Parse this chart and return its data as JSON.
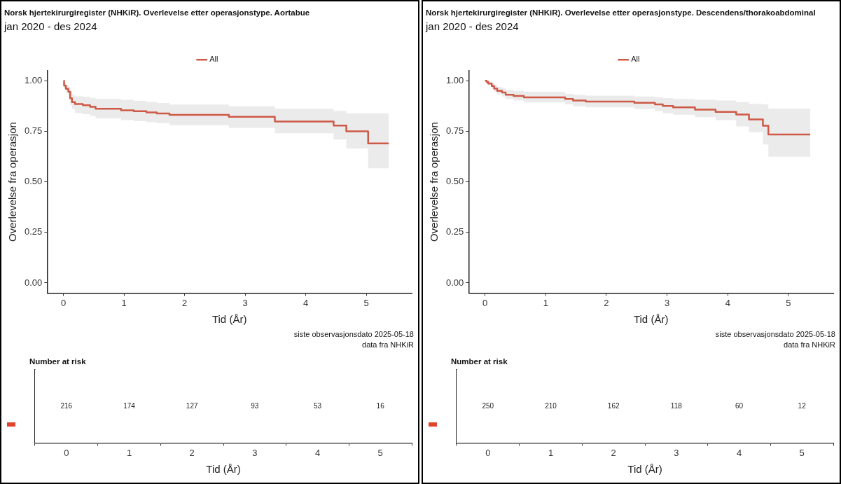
{
  "chart_data": [
    {
      "type": "step",
      "title": "Norsk hjertekirurgiregister (NHKiR). Overlevelse etter operasjonstype. Aortabue",
      "subtitle": "jan 2020 - des 2024",
      "xlabel": "Tid (År)",
      "ylabel": "Overlevelse fra operasjon",
      "legend": "top",
      "grid": false,
      "xlim": [
        -0.27,
        5.75
      ],
      "xticks": [
        0,
        1,
        2,
        3,
        4,
        5
      ],
      "ylim": [
        -0.05,
        1.05
      ],
      "yticks": [
        {
          "value": 0,
          "label": "0.00"
        },
        {
          "value": 0.25,
          "label": "0.25"
        },
        {
          "value": 0.5,
          "label": "0.50"
        },
        {
          "value": 0.75,
          "label": "0.75"
        },
        {
          "value": 1,
          "label": "1.00"
        }
      ],
      "annotations": [
        "siste observasjonsdato 2025-05-18",
        "data fra NHKiR"
      ],
      "series": [
        {
          "name": "All",
          "color": "#cd5a46",
          "x": [
            0,
            0.01,
            0.04,
            0.08,
            0.11,
            0.14,
            0.19,
            0.32,
            0.44,
            0.53,
            0.95,
            1.16,
            1.37,
            1.54,
            1.75,
            2.73,
            3.49,
            4.46,
            4.67,
            5.03,
            5.37
          ],
          "values": [
            1.0,
            0.976,
            0.96,
            0.945,
            0.913,
            0.894,
            0.885,
            0.879,
            0.871,
            0.861,
            0.854,
            0.849,
            0.843,
            0.838,
            0.831,
            0.822,
            0.798,
            0.778,
            0.75,
            0.69,
            0.69
          ],
          "lower": [
            1.0,
            0.96,
            0.94,
            0.92,
            0.88,
            0.86,
            0.84,
            0.835,
            0.826,
            0.814,
            0.805,
            0.8,
            0.795,
            0.79,
            0.78,
            0.767,
            0.74,
            0.709,
            0.665,
            0.567,
            0.567
          ],
          "upper": [
            1.0,
            0.99,
            0.98,
            0.97,
            0.95,
            0.93,
            0.924,
            0.92,
            0.915,
            0.91,
            0.906,
            0.9,
            0.895,
            0.89,
            0.882,
            0.874,
            0.861,
            0.85,
            0.839,
            0.839,
            0.839
          ]
        }
      ]
    },
    {
      "type": "heatmap",
      "title": "Number at risk",
      "xlabel": "Tid (År)",
      "categories": [
        "0",
        "1",
        "2",
        "3",
        "4",
        "5"
      ],
      "y_categories": [
        null
      ],
      "data_labels": true,
      "cells": [
        [
          216,
          174,
          127,
          93,
          53,
          16
        ]
      ]
    },
    {
      "type": "step",
      "title": "Norsk hjertekirurgiregister (NHKiR). Overlevelse etter operasjonstype. Descendens/thorakoabdominal",
      "subtitle": "jan 2020 - des 2024",
      "xlabel": "Tid (År)",
      "ylabel": "Overlevelse fra operasjon",
      "legend": "top",
      "grid": false,
      "xlim": [
        -0.27,
        5.74
      ],
      "xticks": [
        0,
        1,
        2,
        3,
        4,
        5
      ],
      "ylim": [
        -0.05,
        1.05
      ],
      "yticks": [
        {
          "value": 0,
          "label": "0.00"
        },
        {
          "value": 0.25,
          "label": "0.25"
        },
        {
          "value": 0.5,
          "label": "0.50"
        },
        {
          "value": 0.75,
          "label": "0.75"
        },
        {
          "value": 1,
          "label": "1.00"
        }
      ],
      "annotations": [
        "siste observasjonsdato 2025-05-18",
        "data fra NHKiR"
      ],
      "series": [
        {
          "name": "All",
          "color": "#cd5a46",
          "x": [
            0,
            0.025,
            0.05,
            0.11,
            0.15,
            0.2,
            0.28,
            0.34,
            0.47,
            0.64,
            1.32,
            1.45,
            1.66,
            2.46,
            2.8,
            2.93,
            3.1,
            3.46,
            3.8,
            4.14,
            4.35,
            4.58,
            4.67,
            5.36
          ],
          "values": [
            1.0,
            0.995,
            0.986,
            0.974,
            0.961,
            0.95,
            0.942,
            0.931,
            0.925,
            0.918,
            0.91,
            0.902,
            0.897,
            0.891,
            0.883,
            0.875,
            0.868,
            0.857,
            0.846,
            0.833,
            0.809,
            0.777,
            0.734,
            0.734
          ],
          "lower": [
            1.0,
            0.99,
            0.975,
            0.96,
            0.945,
            0.932,
            0.922,
            0.91,
            0.902,
            0.893,
            0.883,
            0.874,
            0.868,
            0.86,
            0.85,
            0.84,
            0.832,
            0.82,
            0.805,
            0.774,
            0.745,
            0.685,
            0.624,
            0.624
          ],
          "upper": [
            1.0,
            1.0,
            0.997,
            0.99,
            0.98,
            0.97,
            0.963,
            0.955,
            0.95,
            0.945,
            0.935,
            0.93,
            0.926,
            0.922,
            0.918,
            0.914,
            0.91,
            0.906,
            0.902,
            0.894,
            0.886,
            0.883,
            0.862,
            0.862
          ]
        }
      ]
    },
    {
      "type": "heatmap",
      "title": "Number at risk",
      "xlabel": "Tid (År)",
      "categories": [
        "0",
        "1",
        "2",
        "3",
        "4",
        "5"
      ],
      "y_categories": [
        null
      ],
      "data_labels": true,
      "cells": [
        [
          250,
          210,
          162,
          118,
          60,
          12
        ]
      ]
    }
  ]
}
